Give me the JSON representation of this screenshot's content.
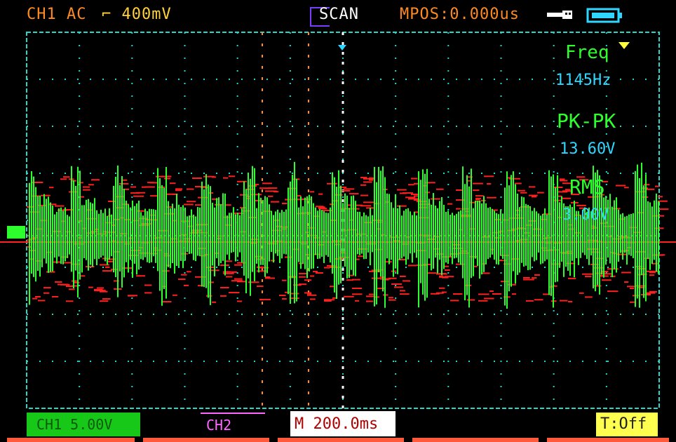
{
  "header": {
    "channel_info": "CH1 AC",
    "trigger_info": "⌐ 400mV",
    "mode": "SCAN",
    "mpos": "MPOS:0.000us",
    "usb_icon": "usb-icon",
    "battery_icon": "battery-icon"
  },
  "measurements": [
    {
      "label": "Freq",
      "value": "1145Hz"
    },
    {
      "label": "PK-PK",
      "value": "13.60V"
    },
    {
      "label": "RMS",
      "value": "3.00V"
    }
  ],
  "bottom": {
    "ch1_scale": "CH1 5.00V",
    "ch2_scale": "CH2",
    "timebase": "M 200.0ms",
    "trigger_status": "T:Off"
  },
  "colors": {
    "background": "#000000",
    "grid": "#24d7c7",
    "ch1": "#2cff2c",
    "ch2": "#ff2020",
    "accent_orange": "#ff8a1f",
    "accent_purple": "#7a3cff",
    "accent_cyan": "#2fd6ff",
    "trigger_yellow": "#ffff40"
  }
}
